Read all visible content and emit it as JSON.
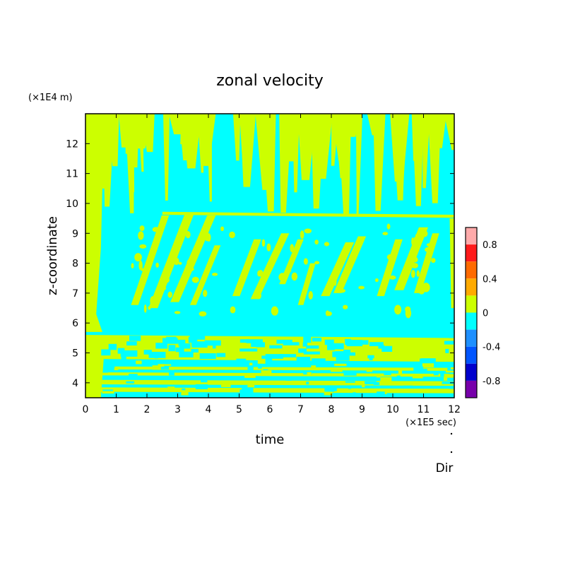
{
  "chart_data": {
    "type": "heatmap",
    "title": "zonal velocity",
    "xlabel": "time",
    "ylabel": "z-coordinate",
    "x_unit_label": "(×1E5 sec)",
    "y_unit_label": "(×1E4 m)",
    "footer_label": "Dir",
    "xlim": [
      0,
      12
    ],
    "ylim": [
      3.5,
      13
    ],
    "x_ticks": [
      0,
      1,
      2,
      3,
      4,
      5,
      6,
      7,
      8,
      9,
      10,
      11,
      12
    ],
    "y_ticks": [
      4,
      5,
      6,
      7,
      8,
      9,
      10,
      11,
      12
    ],
    "colorbar": {
      "range": [
        -1,
        1
      ],
      "tick_labels": [
        "0.8",
        "0.4",
        "0",
        "-0.4",
        "-0.8"
      ],
      "tick_values": [
        0.8,
        0.4,
        0,
        -0.4,
        -0.8
      ],
      "levels": [
        {
          "from": 0.8,
          "to": 1.0,
          "color": "#ffaaaa"
        },
        {
          "from": 0.6,
          "to": 0.8,
          "color": "#ff1a1a"
        },
        {
          "from": 0.4,
          "to": 0.6,
          "color": "#ff6a00"
        },
        {
          "from": 0.2,
          "to": 0.4,
          "color": "#ffaa00"
        },
        {
          "from": 0.0,
          "to": 0.2,
          "color": "#ccff00"
        },
        {
          "from": -0.2,
          "to": 0.0,
          "color": "#00ffff"
        },
        {
          "from": -0.4,
          "to": -0.2,
          "color": "#1e90ff"
        },
        {
          "from": -0.6,
          "to": -0.4,
          "color": "#0055ff"
        },
        {
          "from": -0.8,
          "to": -0.6,
          "color": "#0000cc"
        },
        {
          "from": -1.0,
          "to": -0.8,
          "color": "#7700aa"
        }
      ]
    },
    "field_description": {
      "background_value": -0.1,
      "positive_regions": [
        {
          "x": [
            0.0,
            0.6
          ],
          "z": [
            6.0,
            13.0
          ],
          "value": 0.1
        },
        {
          "x": [
            0.0,
            12.0
          ],
          "z": [
            3.5,
            5.6
          ],
          "value": 0.1,
          "pattern": "horizontal bands"
        },
        {
          "x": [
            0.0,
            12.0
          ],
          "z": [
            9.6,
            13.0
          ],
          "value": 0.1,
          "pattern": "vertical streaks"
        },
        {
          "x": [
            1.5,
            11.5
          ],
          "z": [
            6.3,
            9.5
          ],
          "value": 0.1,
          "pattern": "slanted streaks"
        }
      ]
    }
  }
}
